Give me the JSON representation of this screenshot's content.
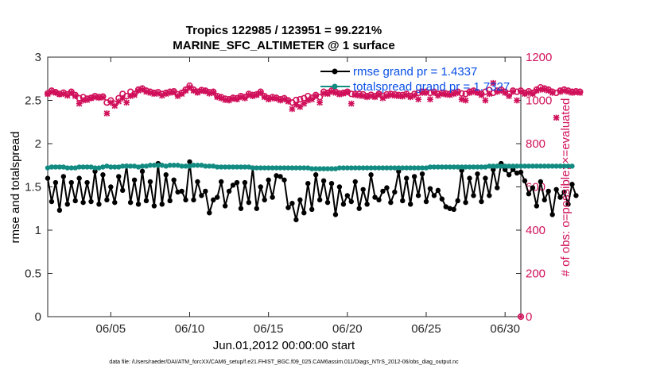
{
  "chart_data": {
    "type": "line",
    "title": "Tropics 122985 / 123951 = 99.221%",
    "subtitle": "MARINE_SFC_ALTIMETER @ 1 surface",
    "xlabel": "Jun.01,2012 00:00:00 start",
    "ylabel": "rmse and totalspread",
    "ylabel_right": "# of obs: o=possible; ×=evaluated",
    "xlim": [
      1,
      31
    ],
    "ylim": [
      0,
      3
    ],
    "ylim_right": [
      0,
      1200
    ],
    "x_ticks": [
      5,
      10,
      15,
      20,
      25,
      30
    ],
    "x_tick_labels": [
      "06/05",
      "06/10",
      "06/15",
      "06/20",
      "06/25",
      "06/30"
    ],
    "y_ticks": [
      0,
      0.5,
      1,
      1.5,
      2,
      2.5,
      3
    ],
    "y_tick_labels": [
      "0",
      "0.5",
      "1",
      "1.5",
      "2",
      "2.5",
      "3"
    ],
    "y_ticks_right": [
      0,
      200,
      400,
      600,
      800,
      1000,
      1200
    ],
    "y_tick_labels_right": [
      "0",
      "200",
      "400",
      "600",
      "800",
      "1000",
      "1200"
    ],
    "legend_position": "top-right",
    "legend": [
      {
        "label": "rmse grand pr = 1.4337",
        "color": "#000000"
      },
      {
        "label": "totalspread grand pr = 1.7327",
        "color": "#128c82"
      }
    ],
    "x_start": 1.0,
    "x_step": 0.25,
    "series": [
      {
        "name": "rmse grand pr = 1.4337",
        "axis": "left",
        "color": "#000000",
        "marker": "circle",
        "values": [
          1.6,
          1.33,
          1.55,
          1.23,
          1.62,
          1.3,
          1.55,
          1.34,
          1.6,
          1.32,
          1.55,
          1.33,
          1.68,
          1.3,
          1.64,
          1.35,
          1.5,
          1.32,
          1.62,
          1.46,
          1.74,
          1.32,
          1.58,
          1.3,
          1.68,
          1.34,
          1.56,
          1.28,
          1.77,
          1.3,
          1.64,
          1.34,
          1.58,
          1.44,
          1.45,
          1.35,
          1.79,
          1.35,
          1.56,
          1.4,
          1.45,
          1.2,
          1.35,
          1.38,
          1.56,
          1.28,
          1.45,
          1.52,
          1.55,
          1.25,
          1.55,
          1.32,
          1.72,
          1.25,
          1.5,
          1.35,
          1.58,
          1.38,
          1.63,
          1.62,
          1.58,
          1.26,
          1.31,
          1.12,
          1.35,
          1.2,
          1.54,
          1.24,
          1.64,
          1.35,
          1.57,
          1.32,
          1.54,
          1.18,
          1.5,
          1.3,
          1.4,
          1.33,
          1.56,
          1.25,
          1.47,
          1.3,
          1.64,
          1.38,
          1.35,
          1.45,
          1.49,
          1.32,
          1.44,
          1.68,
          1.34,
          1.6,
          1.3,
          1.62,
          1.4,
          1.65,
          1.33,
          1.48,
          1.4,
          1.46,
          1.36,
          1.27,
          1.25,
          1.24,
          1.34,
          1.69,
          1.32,
          1.6,
          1.4,
          1.65,
          1.33,
          1.6,
          1.4,
          1.7,
          1.49,
          1.77,
          1.7,
          1.64,
          1.7,
          1.66,
          1.67,
          1.57,
          1.42,
          1.49,
          1.28,
          1.56,
          1.35,
          1.45,
          1.18,
          1.47,
          1.38,
          1.44,
          1.3,
          1.53,
          1.4
        ]
      },
      {
        "name": "totalspread grand pr = 1.7327",
        "axis": "left",
        "color": "#128c82",
        "marker": "circle",
        "values": [
          1.72,
          1.73,
          1.73,
          1.73,
          1.73,
          1.72,
          1.72,
          1.72,
          1.73,
          1.73,
          1.73,
          1.73,
          1.72,
          1.72,
          1.73,
          1.74,
          1.73,
          1.73,
          1.73,
          1.74,
          1.74,
          1.74,
          1.74,
          1.73,
          1.74,
          1.74,
          1.75,
          1.75,
          1.75,
          1.75,
          1.74,
          1.75,
          1.75,
          1.75,
          1.74,
          1.74,
          1.74,
          1.75,
          1.75,
          1.75,
          1.74,
          1.74,
          1.74,
          1.73,
          1.73,
          1.73,
          1.73,
          1.73,
          1.73,
          1.73,
          1.73,
          1.73,
          1.72,
          1.72,
          1.72,
          1.72,
          1.72,
          1.72,
          1.72,
          1.72,
          1.72,
          1.72,
          1.72,
          1.72,
          1.72,
          1.72,
          1.72,
          1.71,
          1.71,
          1.71,
          1.71,
          1.71,
          1.71,
          1.71,
          1.72,
          1.72,
          1.72,
          1.72,
          1.72,
          1.72,
          1.72,
          1.72,
          1.72,
          1.72,
          1.72,
          1.72,
          1.72,
          1.72,
          1.72,
          1.72,
          1.72,
          1.72,
          1.72,
          1.72,
          1.72,
          1.72,
          1.72,
          1.73,
          1.73,
          1.73,
          1.73,
          1.73,
          1.73,
          1.73,
          1.73,
          1.73,
          1.73,
          1.73,
          1.73,
          1.73,
          1.73,
          1.73,
          1.74,
          1.74,
          1.74,
          1.74,
          1.74,
          1.74,
          1.74,
          1.74,
          1.74,
          1.74,
          1.74,
          1.74,
          1.74,
          1.74,
          1.74,
          1.74,
          1.74,
          1.74,
          1.74,
          1.74,
          1.74,
          1.74
        ]
      },
      {
        "name": "possible",
        "axis": "right",
        "color": "#d0105a",
        "marker": "o",
        "values": [
          1032,
          1045,
          1038,
          1030,
          1036,
          1028,
          1040,
          1025,
          1010,
          1015,
          1008,
          1012,
          1020,
          1015,
          1018,
          990,
          1000,
          985,
          1010,
          1030,
          1020,
          1040,
          1030,
          1050,
          1055,
          1045,
          1040,
          1035,
          1038,
          1030,
          1035,
          1040,
          1042,
          1028,
          1035,
          1050,
          1068,
          1050,
          1040,
          1048,
          1045,
          1038,
          1040,
          1020,
          1015,
          1008,
          1005,
          1012,
          1010,
          1020,
          1015,
          1030,
          1025,
          1028,
          1040,
          1020,
          1010,
          1015,
          1012,
          1005,
          1010,
          1000,
          990,
          1002,
          1005,
          1010,
          1020,
          1012,
          1025,
          1015,
          1040,
          1035,
          1045,
          1040,
          1032,
          1035,
          1040,
          1030,
          1030,
          1030,
          1028,
          1020,
          1026,
          1020,
          1030,
          1020,
          1028,
          1030,
          1028,
          1025,
          1025,
          1030,
          1020,
          1030,
          1035,
          1040,
          1040,
          1035,
          1040,
          1030,
          1035,
          1032,
          1030,
          1035,
          1040,
          1032,
          1030,
          1040,
          1045,
          1038,
          1030,
          1040,
          1048,
          1035,
          1045,
          1050,
          1040,
          1030,
          1045,
          1040,
          1045,
          1035,
          1042,
          1035,
          1050,
          1060,
          1055,
          1050,
          1040,
          1035,
          1045,
          1050,
          1045,
          1040,
          1042,
          1040
        ]
      },
      {
        "name": "evaluated",
        "axis": "right",
        "color": "#d0105a",
        "marker": "x",
        "values": [
          1030,
          1040,
          1035,
          1028,
          1030,
          1022,
          1035,
          1020,
          985,
          1000,
          1002,
          1010,
          1015,
          1012,
          1014,
          940,
          990,
          975,
          995,
          1010,
          990,
          1020,
          1025,
          1045,
          1050,
          1040,
          1035,
          1030,
          1032,
          1022,
          1030,
          1035,
          1038,
          1020,
          1030,
          1045,
          1060,
          1045,
          1036,
          1045,
          1042,
          1032,
          1036,
          1015,
          1010,
          1002,
          1000,
          1008,
          1005,
          1015,
          1010,
          1025,
          1020,
          1025,
          1035,
          1015,
          1005,
          1010,
          1008,
          1000,
          1005,
          995,
          960,
          980,
          970,
          985,
          1000,
          1005,
          1020,
          990,
          1032,
          1030,
          1040,
          1035,
          1028,
          1032,
          1038,
          985,
          1025,
          1022,
          1020,
          1015,
          1020,
          1015,
          1028,
          1010,
          1020,
          1025,
          1022,
          1020,
          1018,
          1025,
          1015,
          1022,
          1005,
          1035,
          1035,
          1005,
          1035,
          1022,
          1030,
          1027,
          1025,
          1030,
          1035,
          1005,
          1000,
          1035,
          1040,
          1035,
          1025,
          1000,
          1030,
          1080,
          1040,
          1045,
          1035,
          1020,
          1040,
          1000,
          1040,
          1030,
          1035,
          1030,
          1045,
          1050,
          1050,
          1045,
          1035,
          920,
          1040,
          1045,
          1040,
          1035,
          1038,
          1035
        ]
      }
    ],
    "extra_point": {
      "x": 31,
      "y_right": 0,
      "note": "final obs count at axis edge"
    },
    "footnote": "data file: /Users/raeder/DAI/ATM_forcXX/CAM6_setup/f.e21.FHIST_BGC.f09_025.CAM6assim.011/Diags_NTrS_2012-06/obs_diag_output.nc"
  }
}
